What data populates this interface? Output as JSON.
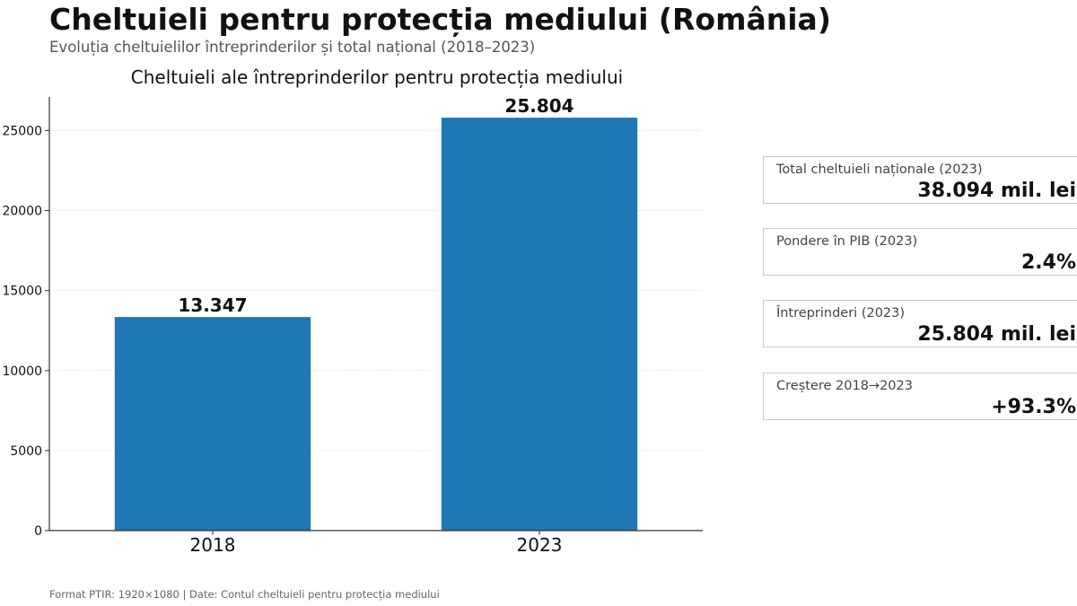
{
  "header": {
    "title": "Cheltuieli pentru protecția mediului (România)",
    "subtitle": "Evoluția cheltuielilor întreprinderilor și total național (2018–2023)"
  },
  "chart_data": {
    "type": "bar",
    "title": "Cheltuieli ale întreprinderilor pentru protecția mediului",
    "categories": [
      "2018",
      "2023"
    ],
    "values": [
      13347,
      25804
    ],
    "value_labels": [
      "13.347",
      "25.804"
    ],
    "xlabel": "",
    "ylabel": "",
    "ylim": [
      0,
      27100
    ],
    "yticks": [
      0,
      5000,
      10000,
      15000,
      20000,
      25000
    ],
    "ytick_labels": [
      "0",
      "5000",
      "10000",
      "15000",
      "20000",
      "25000"
    ],
    "grid": true,
    "bar_color": "#1f77b4"
  },
  "kpis": [
    {
      "label": "Total cheltuieli naționale (2023)",
      "value": "38.094 mil. lei"
    },
    {
      "label": "Pondere în PIB (2023)",
      "value": "2.4%"
    },
    {
      "label": "Întreprinderi (2023)",
      "value": "25.804 mil. lei"
    },
    {
      "label": "Creștere 2018→2023",
      "value": "+93.3%"
    }
  ],
  "footer": {
    "text": "Format PTIR: 1920×1080 | Date: Contul cheltuieli pentru protecția mediului"
  }
}
